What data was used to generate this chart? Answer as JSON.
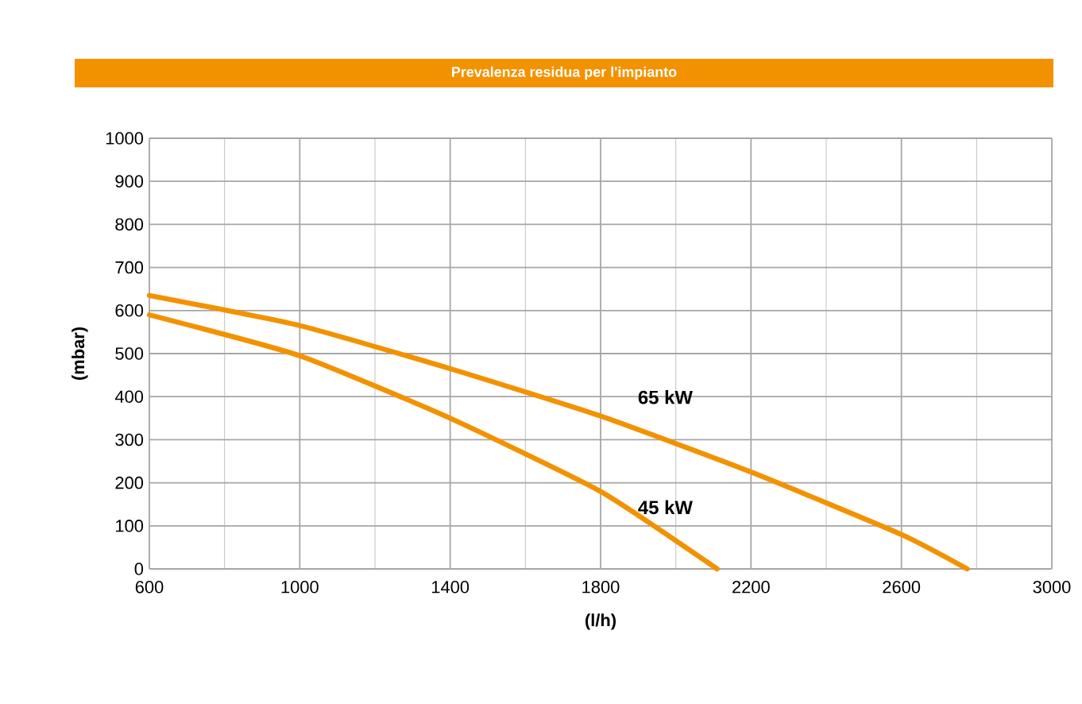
{
  "chart_data": {
    "type": "line",
    "title": "Prevalenza residua per l'impianto",
    "xlabel": "(l/h)",
    "ylabel": "(mbar)",
    "xlim": [
      600,
      3000
    ],
    "ylim": [
      0,
      1000
    ],
    "xticks": [
      600,
      1000,
      1400,
      1800,
      2200,
      2600,
      3000
    ],
    "yticks": [
      0,
      100,
      200,
      300,
      400,
      500,
      600,
      700,
      800,
      900,
      1000
    ],
    "grid": true,
    "series": [
      {
        "name": "65 kW",
        "color": "#f39200",
        "x": [
          600,
          1000,
          1400,
          1800,
          2200,
          2600,
          2775
        ],
        "values": [
          635,
          565,
          465,
          355,
          225,
          80,
          0
        ]
      },
      {
        "name": "45 kW",
        "color": "#f39200",
        "x": [
          600,
          1000,
          1400,
          1800,
          2110
        ],
        "values": [
          590,
          495,
          350,
          180,
          0
        ]
      }
    ]
  }
}
